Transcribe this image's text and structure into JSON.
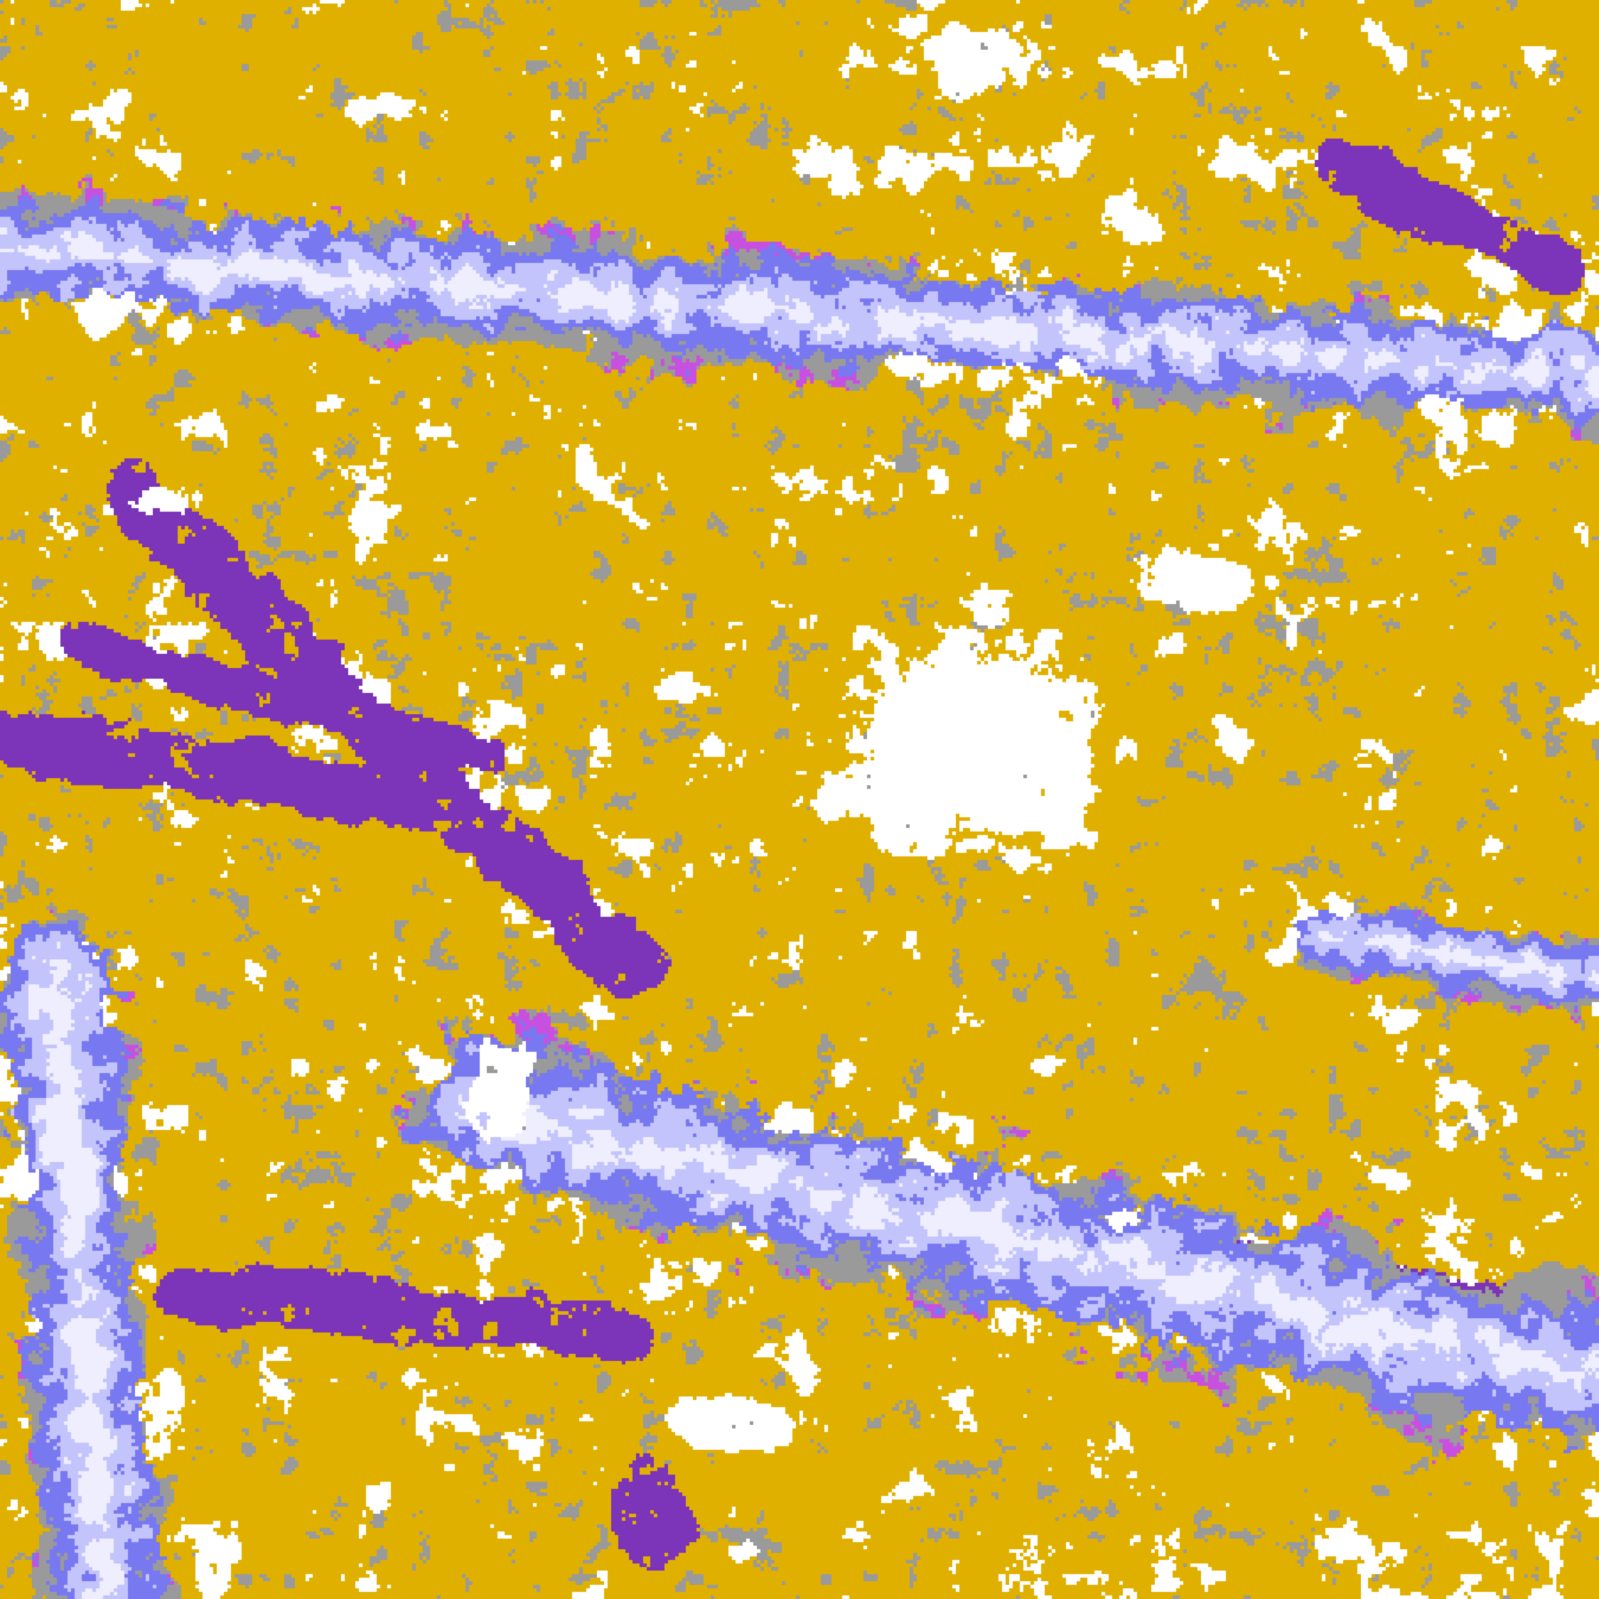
{
  "image": {
    "kind": "false-color satellite cloud classification",
    "palette": {
      "clear": "#ffffff",
      "gold": "#e0b000",
      "gray": "#9a9a9a",
      "purple": "#7c34b8",
      "magenta": "#c850e0",
      "periwinkle": "#7878f0",
      "lavender": "#c4c4fc",
      "pale": "#eeeeff"
    }
  }
}
